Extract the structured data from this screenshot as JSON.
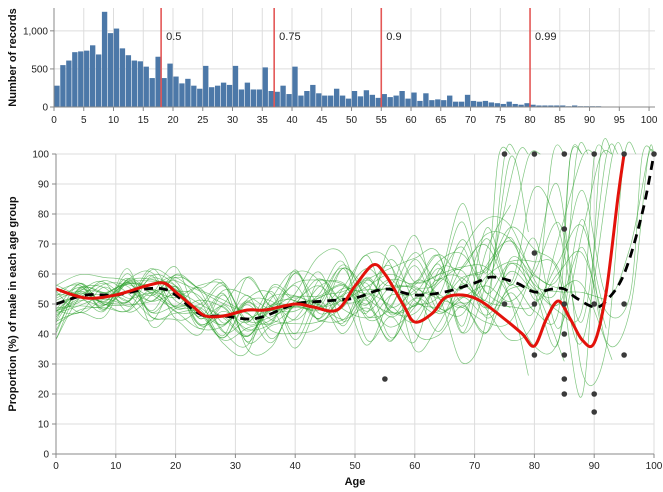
{
  "chart_data": [
    {
      "type": "bar",
      "xlabel": "",
      "ylabel": "Number of records",
      "xlim": [
        0,
        101
      ],
      "ylim": [
        0,
        1300
      ],
      "xticks": [
        "0",
        "5",
        "10",
        "15",
        "20",
        "25",
        "30",
        "35",
        "40",
        "45",
        "50",
        "55",
        "60",
        "65",
        "70",
        "75",
        "80",
        "85",
        "90",
        "95",
        "100"
      ],
      "yticks": [
        "0",
        "500",
        "1,000"
      ],
      "grid": true,
      "bar_color": "#4c78a8",
      "values": [
        280,
        550,
        610,
        720,
        730,
        740,
        810,
        690,
        1250,
        970,
        1030,
        770,
        680,
        610,
        600,
        530,
        380,
        660,
        380,
        570,
        400,
        310,
        370,
        280,
        240,
        540,
        260,
        280,
        320,
        290,
        540,
        230,
        320,
        230,
        230,
        520,
        210,
        200,
        280,
        170,
        530,
        150,
        210,
        290,
        180,
        150,
        150,
        240,
        150,
        110,
        210,
        140,
        220,
        160,
        120,
        170,
        130,
        150,
        210,
        110,
        190,
        80,
        180,
        90,
        100,
        90,
        150,
        70,
        70,
        160,
        80,
        70,
        80,
        60,
        50,
        40,
        70,
        40,
        30,
        50,
        30,
        20,
        20,
        20,
        20,
        20,
        10,
        20,
        10,
        10,
        10,
        10,
        5,
        5,
        5,
        5,
        5,
        5,
        5,
        5,
        5
      ],
      "quantile_lines": [
        {
          "label": "0.5",
          "x": 18
        },
        {
          "label": "0.75",
          "x": 37
        },
        {
          "label": "0.9",
          "x": 55
        },
        {
          "label": "0.99",
          "x": 80
        }
      ],
      "quantile_color": "#e45756"
    },
    {
      "type": "line",
      "xlabel": "Age",
      "ylabel": "Proportion (%) of male in each age group",
      "xlim": [
        0,
        100
      ],
      "ylim": [
        0,
        100
      ],
      "xticks": [
        "0",
        "10",
        "20",
        "30",
        "40",
        "50",
        "60",
        "70",
        "80",
        "90",
        "100"
      ],
      "yticks": [
        "0",
        "10",
        "20",
        "30",
        "40",
        "50",
        "60",
        "70",
        "80",
        "90",
        "100"
      ],
      "grid": true,
      "series": [
        {
          "style": "thin-green-bootstrap-curves",
          "color": "#2ca02c",
          "count": 28
        },
        {
          "style": "red-solid",
          "color": "#e3120b",
          "points": [
            [
              0,
              55
            ],
            [
              5,
              52
            ],
            [
              10,
              53
            ],
            [
              15,
              56
            ],
            [
              18,
              57
            ],
            [
              20,
              54
            ],
            [
              23,
              49
            ],
            [
              25,
              46
            ],
            [
              28,
              46
            ],
            [
              32,
              48
            ],
            [
              35,
              48
            ],
            [
              40,
              50
            ],
            [
              43,
              49
            ],
            [
              47,
              48
            ],
            [
              50,
              56
            ],
            [
              53,
              63
            ],
            [
              55,
              60
            ],
            [
              58,
              50
            ],
            [
              60,
              44
            ],
            [
              63,
              47
            ],
            [
              65,
              52
            ],
            [
              68,
              53
            ],
            [
              71,
              51
            ],
            [
              75,
              45
            ],
            [
              78,
              40
            ],
            [
              80,
              36
            ],
            [
              82,
              45
            ],
            [
              84,
              51
            ],
            [
              86,
              45
            ],
            [
              88,
              38
            ],
            [
              90,
              37
            ],
            [
              92,
              54
            ],
            [
              94,
              86
            ],
            [
              95,
              100
            ]
          ]
        },
        {
          "style": "black-dashed",
          "color": "#000000",
          "points": [
            [
              0,
              50
            ],
            [
              5,
              53
            ],
            [
              10,
              53
            ],
            [
              15,
              55
            ],
            [
              18,
              55
            ],
            [
              20,
              53
            ],
            [
              23,
              48
            ],
            [
              25,
              46
            ],
            [
              28,
              46
            ],
            [
              32,
              45
            ],
            [
              35,
              46
            ],
            [
              40,
              50
            ],
            [
              45,
              51
            ],
            [
              50,
              52
            ],
            [
              55,
              55
            ],
            [
              60,
              53
            ],
            [
              65,
              54
            ],
            [
              70,
              57
            ],
            [
              73,
              59
            ],
            [
              77,
              57
            ],
            [
              80,
              54
            ],
            [
              83,
              55
            ],
            [
              85,
              55
            ],
            [
              87,
              52
            ],
            [
              90,
              49
            ],
            [
              92,
              51
            ],
            [
              95,
              60
            ],
            [
              98,
              80
            ],
            [
              100,
              100
            ]
          ]
        }
      ],
      "scatter_points": [
        [
          55,
          25
        ],
        [
          75,
          100
        ],
        [
          75,
          50
        ],
        [
          80,
          100
        ],
        [
          80,
          67
        ],
        [
          80,
          50
        ],
        [
          80,
          33
        ],
        [
          85,
          100
        ],
        [
          85,
          75
        ],
        [
          85,
          50
        ],
        [
          85,
          40
        ],
        [
          85,
          33
        ],
        [
          85,
          25
        ],
        [
          85,
          20
        ],
        [
          90,
          100
        ],
        [
          90,
          50
        ],
        [
          90,
          20
        ],
        [
          90,
          14
        ],
        [
          95,
          100
        ],
        [
          95,
          50
        ],
        [
          95,
          33
        ],
        [
          100,
          100
        ]
      ],
      "scatter_color": "#3a3a3a"
    }
  ]
}
